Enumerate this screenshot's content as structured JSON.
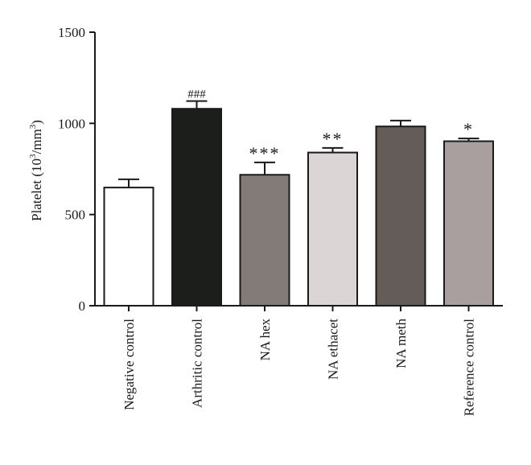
{
  "chart_data": {
    "type": "bar",
    "categories": [
      "Negative control",
      "Arthritic control",
      "NA hex",
      "NA ethacet",
      "NA meth",
      "Reference control"
    ],
    "values": [
      648,
      1080,
      718,
      840,
      983,
      902
    ],
    "errors": [
      45,
      42,
      68,
      25,
      32,
      15
    ],
    "significance": [
      "",
      "###",
      "***",
      "**",
      "",
      "*"
    ],
    "colors": [
      "#ffffff",
      "#1b1e1b",
      "#837b78",
      "#dcd5d5",
      "#645c58",
      "#a89f9e"
    ],
    "ylabel_main": "Platelet (10",
    "ylabel_sup1": "3",
    "ylabel_mid": "/mm",
    "ylabel_sup2": "3",
    "ylabel_end": ")",
    "ylim": [
      0,
      1500
    ],
    "yticks": [
      0,
      500,
      1000,
      1500
    ],
    "grid": false
  }
}
